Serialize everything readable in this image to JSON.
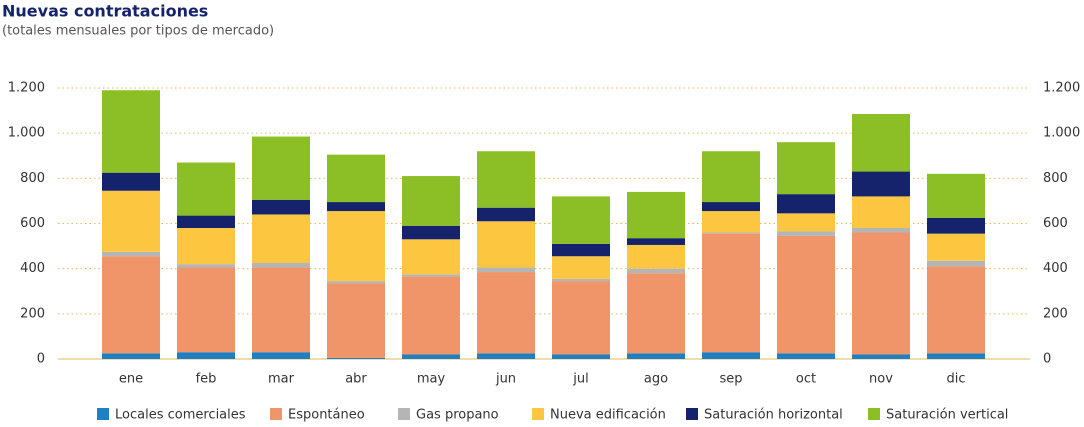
{
  "chart_data": {
    "type": "stacked-bar",
    "title": "Nuevas contrataciones",
    "subtitle": "(totales mensuales por tipos de mercado)",
    "categories": [
      "ene",
      "feb",
      "mar",
      "abr",
      "may",
      "jun",
      "jul",
      "ago",
      "sep",
      "oct",
      "nov",
      "dic"
    ],
    "series": [
      {
        "name": "Locales comerciales",
        "color": "#1f7fc1",
        "values": [
          25,
          30,
          30,
          5,
          20,
          25,
          20,
          25,
          30,
          25,
          20,
          25
        ]
      },
      {
        "name": "Espontáneo",
        "color": "#f0956a",
        "values": [
          430,
          375,
          375,
          330,
          345,
          360,
          325,
          355,
          525,
          520,
          540,
          385
        ]
      },
      {
        "name": "Gas propano",
        "color": "#b5b5b5",
        "values": [
          20,
          15,
          20,
          10,
          10,
          20,
          10,
          20,
          5,
          20,
          20,
          25
        ]
      },
      {
        "name": "Nueva edificación",
        "color": "#fcc640",
        "values": [
          270,
          160,
          215,
          310,
          155,
          205,
          100,
          105,
          95,
          80,
          140,
          120
        ]
      },
      {
        "name": "Saturación horizontal",
        "color": "#14236b",
        "values": [
          80,
          55,
          65,
          40,
          60,
          60,
          55,
          30,
          40,
          85,
          110,
          70
        ]
      },
      {
        "name": "Saturación vertical",
        "color": "#8cbf26",
        "values": [
          365,
          235,
          280,
          210,
          220,
          250,
          210,
          205,
          225,
          230,
          255,
          195
        ]
      }
    ],
    "ylim": [
      0,
      1200
    ],
    "yticks": [
      0,
      200,
      400,
      600,
      800,
      {
        "value": 1000,
        "label": "1.000"
      },
      {
        "value": 1200,
        "label": "1.200"
      }
    ],
    "grid": true
  }
}
